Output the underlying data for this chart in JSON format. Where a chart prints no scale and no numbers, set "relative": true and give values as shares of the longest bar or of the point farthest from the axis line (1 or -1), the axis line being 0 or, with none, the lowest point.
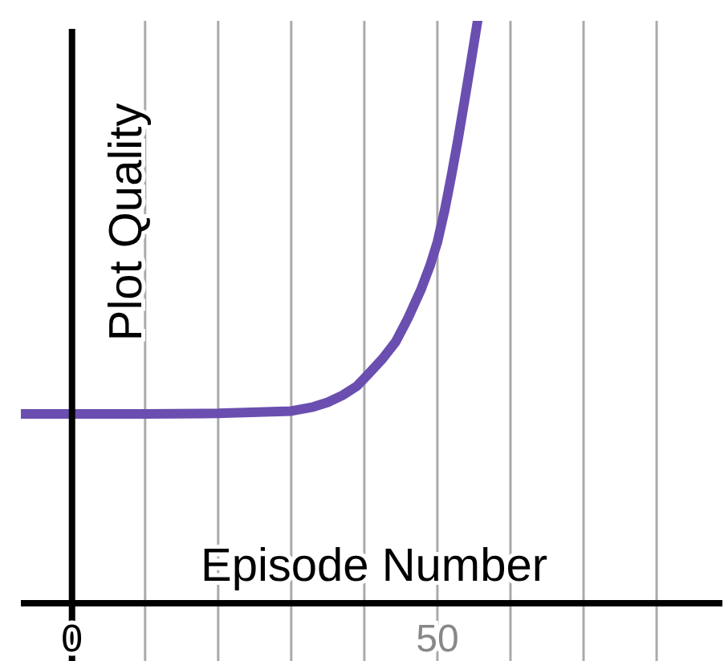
{
  "chart_data": {
    "type": "line",
    "xlabel": "Episode Number",
    "ylabel": "Plot Quality",
    "relative": true,
    "grid": "x",
    "xlim": [
      -7,
      89
    ],
    "xticks": [
      0,
      {
        "value": 10,
        "label": null
      },
      {
        "value": 20,
        "label": null
      },
      {
        "value": 30,
        "label": null
      },
      {
        "value": 40,
        "label": null
      },
      50,
      {
        "value": 60,
        "label": null
      },
      {
        "value": 70,
        "label": null
      },
      {
        "value": 80,
        "label": null
      }
    ],
    "series": [
      {
        "color": "#6a4fb0",
        "x": [
          -7,
          0,
          10,
          20,
          30,
          33,
          35,
          37,
          39,
          40.6,
          42.5,
          44.3,
          46,
          47.8,
          49,
          50,
          51,
          51.9,
          52.8,
          53.7,
          54.6,
          55.5
        ],
        "values": [
          0.325,
          0.325,
          0.325,
          0.326,
          0.33,
          0.337,
          0.345,
          0.357,
          0.373,
          0.394,
          0.42,
          0.449,
          0.49,
          0.54,
          0.58,
          0.62,
          0.675,
          0.733,
          0.795,
          0.862,
          0.93,
          1
        ]
      }
    ]
  }
}
